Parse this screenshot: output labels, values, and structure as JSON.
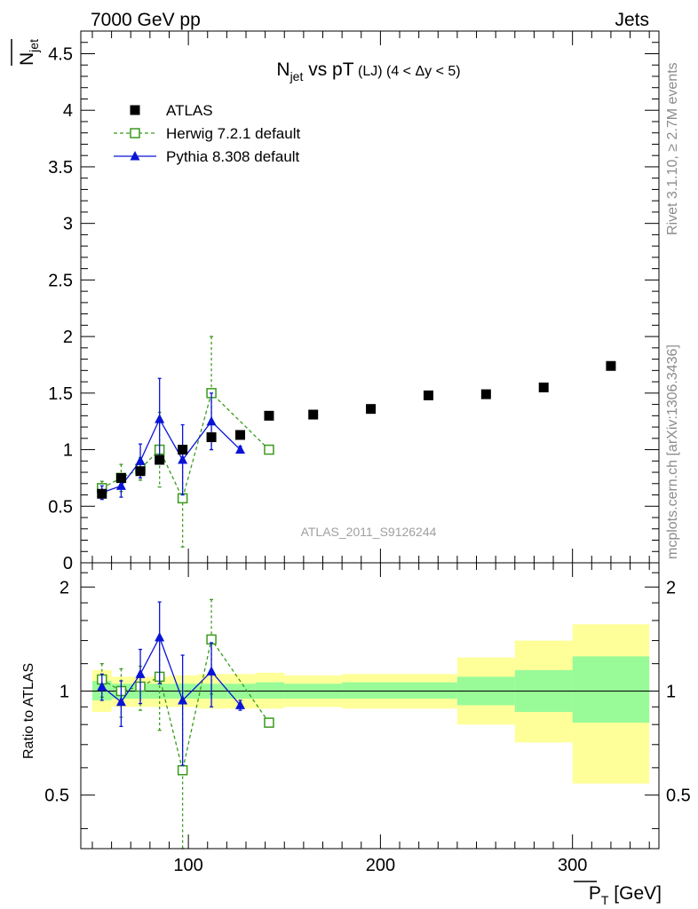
{
  "header": {
    "left": "7000 GeV pp",
    "right": "Jets"
  },
  "side_labels": {
    "rivet": "Rivet 3.1.10, ≥ 2.7M events",
    "mcplots": "mcplots.cern.ch [arXiv:1306.3436]"
  },
  "watermark": "ATLAS_2011_S9126244",
  "chart_data": [
    {
      "type": "scatter",
      "title": "N_jet vs pT (LJ) (4 < Δy < 5)",
      "title_parts": {
        "main": "N",
        "sub": "jet",
        "mid": " vs pT",
        "small": " (LJ) (4 < Δy < 5)"
      },
      "ylabel": "N_jet (overlined)",
      "ylabel_parts": {
        "main": "N",
        "sub": "jet"
      },
      "xlim": [
        44,
        345
      ],
      "ylim": [
        0,
        4.7
      ],
      "yticks": [
        0,
        0.5,
        1,
        1.5,
        2,
        2.5,
        3,
        3.5,
        4,
        4.5
      ],
      "ytick_labels": [
        "0",
        "0.5",
        "1",
        "1.5",
        "2",
        "2.5",
        "3",
        "3.5",
        "4",
        "4.5"
      ],
      "legend_position": "top-left",
      "series": [
        {
          "name": "ATLAS",
          "color": "#000000",
          "marker": "square-filled",
          "line": "none",
          "x": [
            55,
            65,
            75,
            85,
            97,
            112,
            127,
            142,
            165,
            195,
            225,
            255,
            285,
            320
          ],
          "y": [
            0.61,
            0.75,
            0.81,
            0.91,
            1.0,
            1.11,
            1.13,
            1.3,
            1.31,
            1.36,
            1.48,
            1.49,
            1.55,
            1.74
          ],
          "err": [
            0.02,
            0.02,
            0.02,
            0.02,
            0.02,
            0.02,
            0.02,
            0.02,
            0.02,
            0.02,
            0.02,
            0.02,
            0.02,
            0.02
          ]
        },
        {
          "name": "Herwig 7.2.1 default",
          "color": "#3a9a1e",
          "marker": "square-open",
          "line": "dashed",
          "x": [
            55,
            65,
            75,
            85,
            97,
            112,
            142
          ],
          "y": [
            0.66,
            0.75,
            0.83,
            1.0,
            0.57,
            1.5,
            1.0
          ],
          "err": [
            0.06,
            0.12,
            0.1,
            0.33,
            0.43,
            0.5,
            0.0
          ]
        },
        {
          "name": "Pythia 8.308 default",
          "color": "#0a14d6",
          "marker": "triangle-filled",
          "line": "solid",
          "x": [
            55,
            65,
            75,
            85,
            97,
            112,
            127
          ],
          "y": [
            0.62,
            0.68,
            0.9,
            1.27,
            0.91,
            1.25,
            1.0
          ],
          "err": [
            0.06,
            0.1,
            0.15,
            0.36,
            0.31,
            0.25,
            0.03
          ]
        }
      ]
    },
    {
      "type": "scatter",
      "title": "",
      "ylabel": "Ratio to ATLAS",
      "xlabel": "P_T (overlined) [GeV]",
      "xlabel_parts": {
        "main": "P",
        "sub": "T",
        "unit": " [GeV]"
      },
      "xlim": [
        44,
        345
      ],
      "xticks": [
        100,
        200,
        300
      ],
      "xtick_labels": [
        "100",
        "200",
        "300"
      ],
      "ylim": [
        0.35,
        2.35
      ],
      "yticks": [
        0.5,
        1,
        2
      ],
      "ytick_labels": [
        "0.5",
        "1",
        "2"
      ],
      "reference_line": 1,
      "bands": [
        {
          "x": [
            50,
            60
          ],
          "inner": [
            0.94,
            1.07
          ],
          "outer": [
            0.87,
            1.15
          ]
        },
        {
          "x": [
            60,
            70
          ],
          "inner": [
            0.95,
            1.05
          ],
          "outer": [
            0.9,
            1.1
          ]
        },
        {
          "x": [
            70,
            80
          ],
          "inner": [
            0.95,
            1.05
          ],
          "outer": [
            0.9,
            1.1
          ]
        },
        {
          "x": [
            80,
            90
          ],
          "inner": [
            0.95,
            1.05
          ],
          "outer": [
            0.9,
            1.1
          ]
        },
        {
          "x": [
            90,
            105
          ],
          "inner": [
            0.95,
            1.05
          ],
          "outer": [
            0.9,
            1.11
          ]
        },
        {
          "x": [
            105,
            120
          ],
          "inner": [
            0.95,
            1.05
          ],
          "outer": [
            0.89,
            1.12
          ]
        },
        {
          "x": [
            120,
            135
          ],
          "inner": [
            0.95,
            1.05
          ],
          "outer": [
            0.89,
            1.12
          ]
        },
        {
          "x": [
            135,
            150
          ],
          "inner": [
            0.95,
            1.06
          ],
          "outer": [
            0.89,
            1.13
          ]
        },
        {
          "x": [
            150,
            180
          ],
          "inner": [
            0.95,
            1.05
          ],
          "outer": [
            0.9,
            1.11
          ]
        },
        {
          "x": [
            180,
            210
          ],
          "inner": [
            0.95,
            1.06
          ],
          "outer": [
            0.89,
            1.12
          ]
        },
        {
          "x": [
            210,
            240
          ],
          "inner": [
            0.95,
            1.06
          ],
          "outer": [
            0.89,
            1.12
          ]
        },
        {
          "x": [
            240,
            270
          ],
          "inner": [
            0.91,
            1.1
          ],
          "outer": [
            0.8,
            1.25
          ]
        },
        {
          "x": [
            270,
            300
          ],
          "inner": [
            0.87,
            1.15
          ],
          "outer": [
            0.71,
            1.4
          ]
        },
        {
          "x": [
            300,
            340
          ],
          "inner": [
            0.81,
            1.26
          ],
          "outer": [
            0.54,
            1.56
          ]
        }
      ],
      "band_colors": {
        "inner": "#98fb98",
        "outer": "#ffff99"
      },
      "series": [
        {
          "name": "Herwig 7.2.1 default",
          "color": "#3a9a1e",
          "marker": "square-open",
          "line": "dashed",
          "x": [
            55,
            65,
            75,
            85,
            97,
            112,
            142
          ],
          "y": [
            1.08,
            1.0,
            1.03,
            1.1,
            0.59,
            1.41,
            0.81
          ],
          "err": [
            0.12,
            0.16,
            0.15,
            0.33,
            0.41,
            0.43,
            0.0
          ]
        },
        {
          "name": "Pythia 8.308 default",
          "color": "#0a14d6",
          "marker": "triangle-filled",
          "line": "solid",
          "x": [
            55,
            65,
            75,
            85,
            97,
            112,
            127
          ],
          "y": [
            1.03,
            0.93,
            1.12,
            1.43,
            0.94,
            1.14,
            0.91
          ],
          "err": [
            0.09,
            0.14,
            0.2,
            0.38,
            0.33,
            0.24,
            0.03
          ]
        }
      ]
    }
  ]
}
